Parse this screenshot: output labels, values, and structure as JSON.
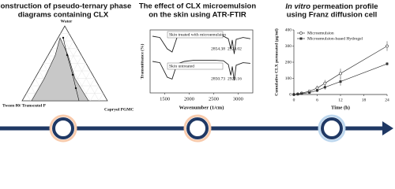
{
  "chart_data": [
    {
      "type": "ternary",
      "title": [
        "Construction of pseudo-ternary phase",
        "diagrams containing CLX"
      ],
      "vertex_labels": [
        "Water",
        "Tween 80/ Transcutol P",
        "Capryol PGMC"
      ],
      "region_color": "#c8c8c8"
    },
    {
      "type": "spectrum",
      "title": [
        "The effect of CLX microemulsion",
        "on the skin using ATR-FTIR"
      ],
      "x_label": "Wavenumber (1/cm)",
      "y_label": "Transmittance (%)",
      "xlim": [
        1200,
        3300
      ],
      "xticks": [
        1500,
        2000,
        2500,
        3000
      ],
      "ylim": [
        0,
        100
      ],
      "x": [
        1250,
        1400,
        1550,
        1650,
        1750,
        1900,
        2100,
        2300,
        2500,
        2700,
        2800,
        2850,
        2880,
        2920,
        2960,
        3100,
        3250
      ],
      "series": [
        {
          "name": "Skin treated with microemulsion",
          "color": "#222222",
          "values": [
            90,
            88,
            70,
            65,
            88,
            90,
            91,
            91,
            91,
            90,
            86,
            70,
            84,
            62,
            85,
            88,
            86
          ]
        },
        {
          "name": "Skin untreated",
          "color": "#222222",
          "values": [
            50,
            48,
            25,
            22,
            46,
            50,
            52,
            52,
            52,
            51,
            45,
            28,
            42,
            20,
            44,
            48,
            47
          ]
        }
      ],
      "annotations": [
        [
          "2854.38",
          "2924.02"
        ],
        [
          "2850.73",
          "2920.16"
        ]
      ]
    },
    {
      "type": "line",
      "title": [
        "In vitro",
        "permeation profile",
        "using Franz diffusion cell"
      ],
      "x_label": "Time (h)",
      "y_label": "Cumulative CLX permeated (µg/ml)",
      "x": [
        0,
        1,
        2,
        4,
        6,
        8,
        12,
        24
      ],
      "xlim": [
        0,
        24
      ],
      "xticks": [
        0,
        6,
        12,
        18,
        24
      ],
      "ylim": [
        0,
        400
      ],
      "yticks": [
        0,
        100,
        200,
        300,
        400
      ],
      "legend": "upper-left",
      "series": [
        {
          "name": "Microemulsion",
          "color": "#333333",
          "marker": "circle",
          "values": [
            0,
            3,
            8,
            20,
            40,
            70,
            130,
            300
          ],
          "errors": [
            0,
            2,
            4,
            8,
            15,
            20,
            30,
            30
          ]
        },
        {
          "name": "Microemulsion-based Hydrogel",
          "color": "#333333",
          "marker": "square",
          "values": [
            0,
            2,
            5,
            12,
            25,
            45,
            80,
            190
          ],
          "errors": [
            0,
            2,
            3,
            6,
            10,
            15,
            25,
            10
          ]
        }
      ]
    }
  ]
}
